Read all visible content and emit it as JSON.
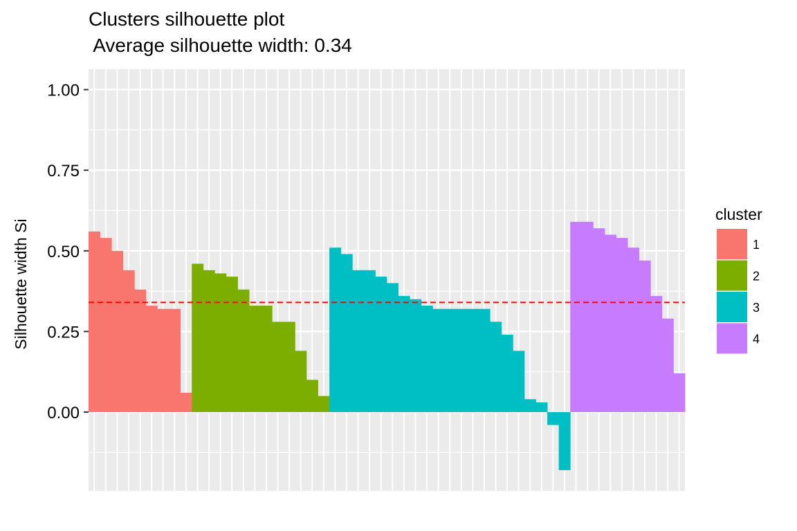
{
  "chart_data": {
    "type": "bar",
    "title_line1": "Clusters silhouette plot",
    "title_line2": " Average silhouette width: 0.34",
    "ylabel": "Silhouette width Si",
    "xlabel": "",
    "ylim": [
      -0.2,
      1.05
    ],
    "yticks": [
      0.0,
      0.25,
      0.5,
      0.75,
      1.0
    ],
    "ytick_labels": [
      "0.00",
      "0.25",
      "0.50",
      "0.75",
      "1.00"
    ],
    "average_line": 0.34,
    "average_line_color": "#ff0000",
    "grid": true,
    "legend": {
      "title": "cluster",
      "position": "right",
      "entries": [
        {
          "label": "1",
          "color": "#F8766D"
        },
        {
          "label": "2",
          "color": "#7CAE00"
        },
        {
          "label": "3",
          "color": "#00BFC4"
        },
        {
          "label": "4",
          "color": "#C77CFF"
        }
      ]
    },
    "series": [
      {
        "cluster": "1",
        "color": "#F8766D",
        "values": [
          0.56,
          0.54,
          0.5,
          0.44,
          0.38,
          0.33,
          0.32,
          0.32,
          0.06
        ]
      },
      {
        "cluster": "2",
        "color": "#7CAE00",
        "values": [
          0.46,
          0.44,
          0.43,
          0.42,
          0.38,
          0.33,
          0.33,
          0.28,
          0.28,
          0.19,
          0.1,
          0.05
        ]
      },
      {
        "cluster": "3",
        "color": "#00BFC4",
        "values": [
          0.51,
          0.49,
          0.44,
          0.44,
          0.42,
          0.4,
          0.36,
          0.35,
          0.33,
          0.32,
          0.32,
          0.32,
          0.32,
          0.32,
          0.28,
          0.24,
          0.19,
          0.04,
          0.03,
          -0.04,
          -0.18
        ]
      },
      {
        "cluster": "4",
        "color": "#C77CFF",
        "values": [
          0.59,
          0.59,
          0.57,
          0.55,
          0.54,
          0.51,
          0.47,
          0.36,
          0.29,
          0.12
        ]
      }
    ]
  }
}
